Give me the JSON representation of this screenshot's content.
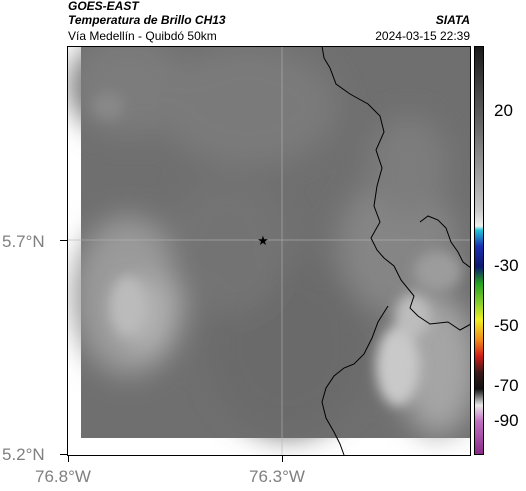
{
  "header": {
    "satellite": "GOES-EAST",
    "product": "Temperatura de Brillo CH13",
    "org": "SIATA",
    "region": "Vía Medellín - Quibdó 50km",
    "timestamp": "2024-03-15 22:39"
  },
  "axes": {
    "lat_ticks": [
      "5.7°N",
      "5.2°N"
    ],
    "lon_ticks": [
      "76.8°W",
      "76.3°W"
    ]
  },
  "colorbar": {
    "labels": [
      "20",
      "-30",
      "-50",
      "-70",
      "-90"
    ]
  },
  "map": {
    "marker": "star-icon",
    "colors": {
      "background_gray": "#6e6e6e",
      "light_cloud": "#c8c8c8",
      "border": "#000000",
      "grid": "#b4b4b4"
    }
  }
}
